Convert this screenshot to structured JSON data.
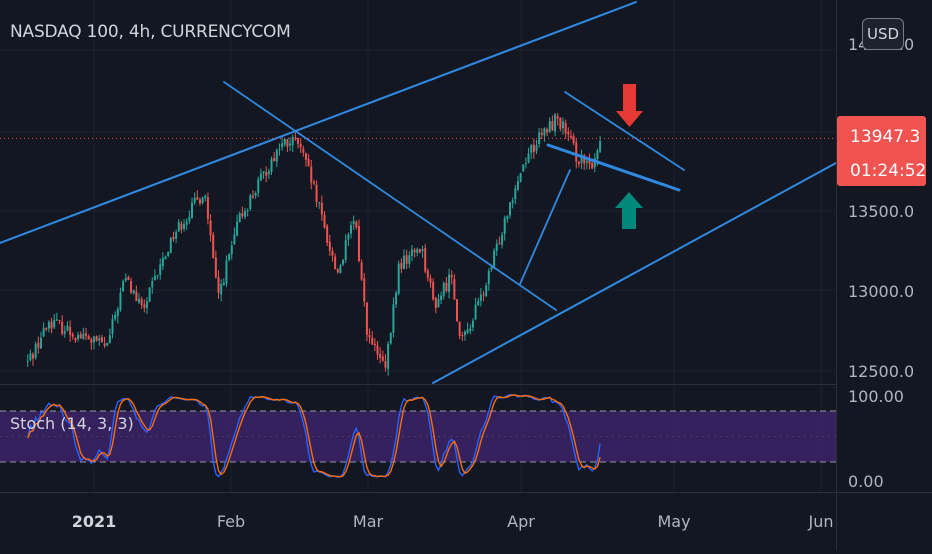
{
  "header": {
    "title": "NASDAQ 100, 4h, CURRENCYCOM",
    "currency": "USD"
  },
  "indicator": {
    "label": "Stoch (14, 3, 3)"
  },
  "colors": {
    "background": "#131722",
    "up": "#26a69a",
    "down": "#ef5350",
    "trend": "#2f89e0",
    "price_tag": "#f05350",
    "stoch_fill": "#3c2367",
    "k_line": "#2962ff",
    "d_line": "#ff6d00",
    "arrow_red": "#e53935",
    "arrow_green": "#00897b"
  },
  "chart_data": [
    {
      "type": "candlestick",
      "symbol": "NASDAQ 100",
      "interval": "4h",
      "source": "CURRENCYCOM",
      "y_ticks": [
        "12500.0",
        "13000.0",
        "13500.0"
      ],
      "y_top_label": "14000.0",
      "x_ticks": [
        "2021",
        "Feb",
        "Mar",
        "Apr",
        "May",
        "Jun"
      ],
      "last_price": "13947.3",
      "countdown": "01:24:52",
      "ylim": [
        12450,
        14200
      ],
      "anchors": [
        [
          "2020-12-17",
          12550
        ],
        [
          "2020-12-22",
          12810
        ],
        [
          "2020-12-28",
          12720
        ],
        [
          "2021-01-04",
          12650
        ],
        [
          "2021-01-08",
          13080
        ],
        [
          "2021-01-12",
          12870
        ],
        [
          "2021-01-19",
          13350
        ],
        [
          "2021-01-26",
          13620
        ],
        [
          "2021-01-29",
          12950
        ],
        [
          "2021-02-03",
          13450
        ],
        [
          "2021-02-08",
          13700
        ],
        [
          "2021-02-12",
          13900
        ],
        [
          "2021-02-16",
          13930
        ],
        [
          "2021-02-19",
          13700
        ],
        [
          "2021-02-25",
          13100
        ],
        [
          "2021-03-01",
          13450
        ],
        [
          "2021-03-04",
          12700
        ],
        [
          "2021-03-08",
          12500
        ],
        [
          "2021-03-11",
          13150
        ],
        [
          "2021-03-16",
          13280
        ],
        [
          "2021-03-19",
          12900
        ],
        [
          "2021-03-23",
          13100
        ],
        [
          "2021-03-25",
          12650
        ],
        [
          "2021-03-31",
          13050
        ],
        [
          "2021-04-05",
          13550
        ],
        [
          "2021-04-09",
          13850
        ],
        [
          "2021-04-14",
          14020
        ],
        [
          "2021-04-16",
          14080
        ],
        [
          "2021-04-20",
          13850
        ],
        [
          "2021-04-23",
          13750
        ],
        [
          "2021-04-26",
          13950
        ]
      ]
    },
    {
      "type": "line",
      "title": "Stoch (14, 3, 3)",
      "y_ticks": [
        "100.00",
        "0.00"
      ],
      "band": [
        20,
        80
      ],
      "series": [
        {
          "values": []
        },
        {
          "values": []
        }
      ]
    }
  ]
}
